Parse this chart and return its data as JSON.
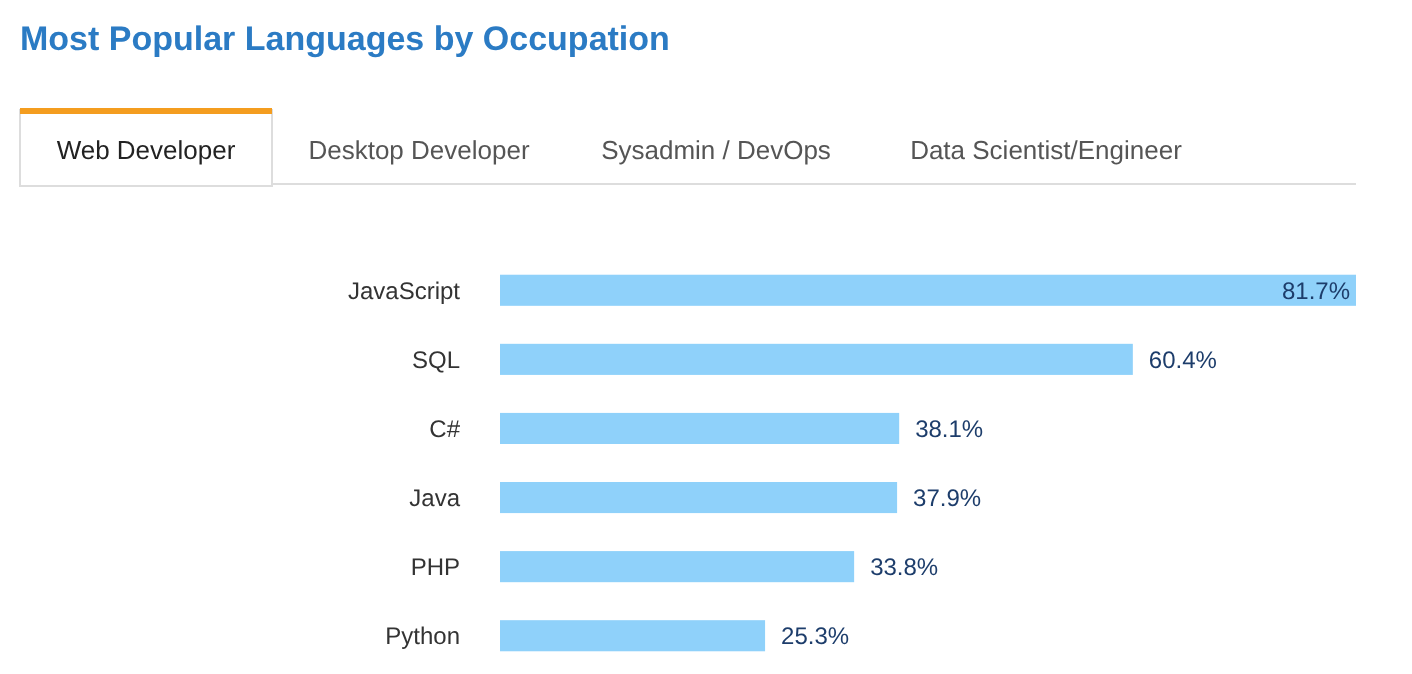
{
  "chart_data": {
    "type": "bar",
    "orientation": "horizontal",
    "title": "Most Popular Languages by Occupation",
    "annotations": [
      "Web Developer",
      "Desktop Developer",
      "Sysadmin / DevOps",
      "Data Scientist/Engineer"
    ],
    "categories": [
      "JavaScript",
      "SQL",
      "C#",
      "Java",
      "PHP",
      "Python"
    ],
    "values": [
      81.7,
      60.4,
      38.1,
      37.9,
      33.8,
      25.3
    ],
    "value_labels": [
      "81.7%",
      "60.4%",
      "38.1%",
      "37.9%",
      "33.8%",
      "25.3%"
    ],
    "color": "#8fd1fa"
  }
}
